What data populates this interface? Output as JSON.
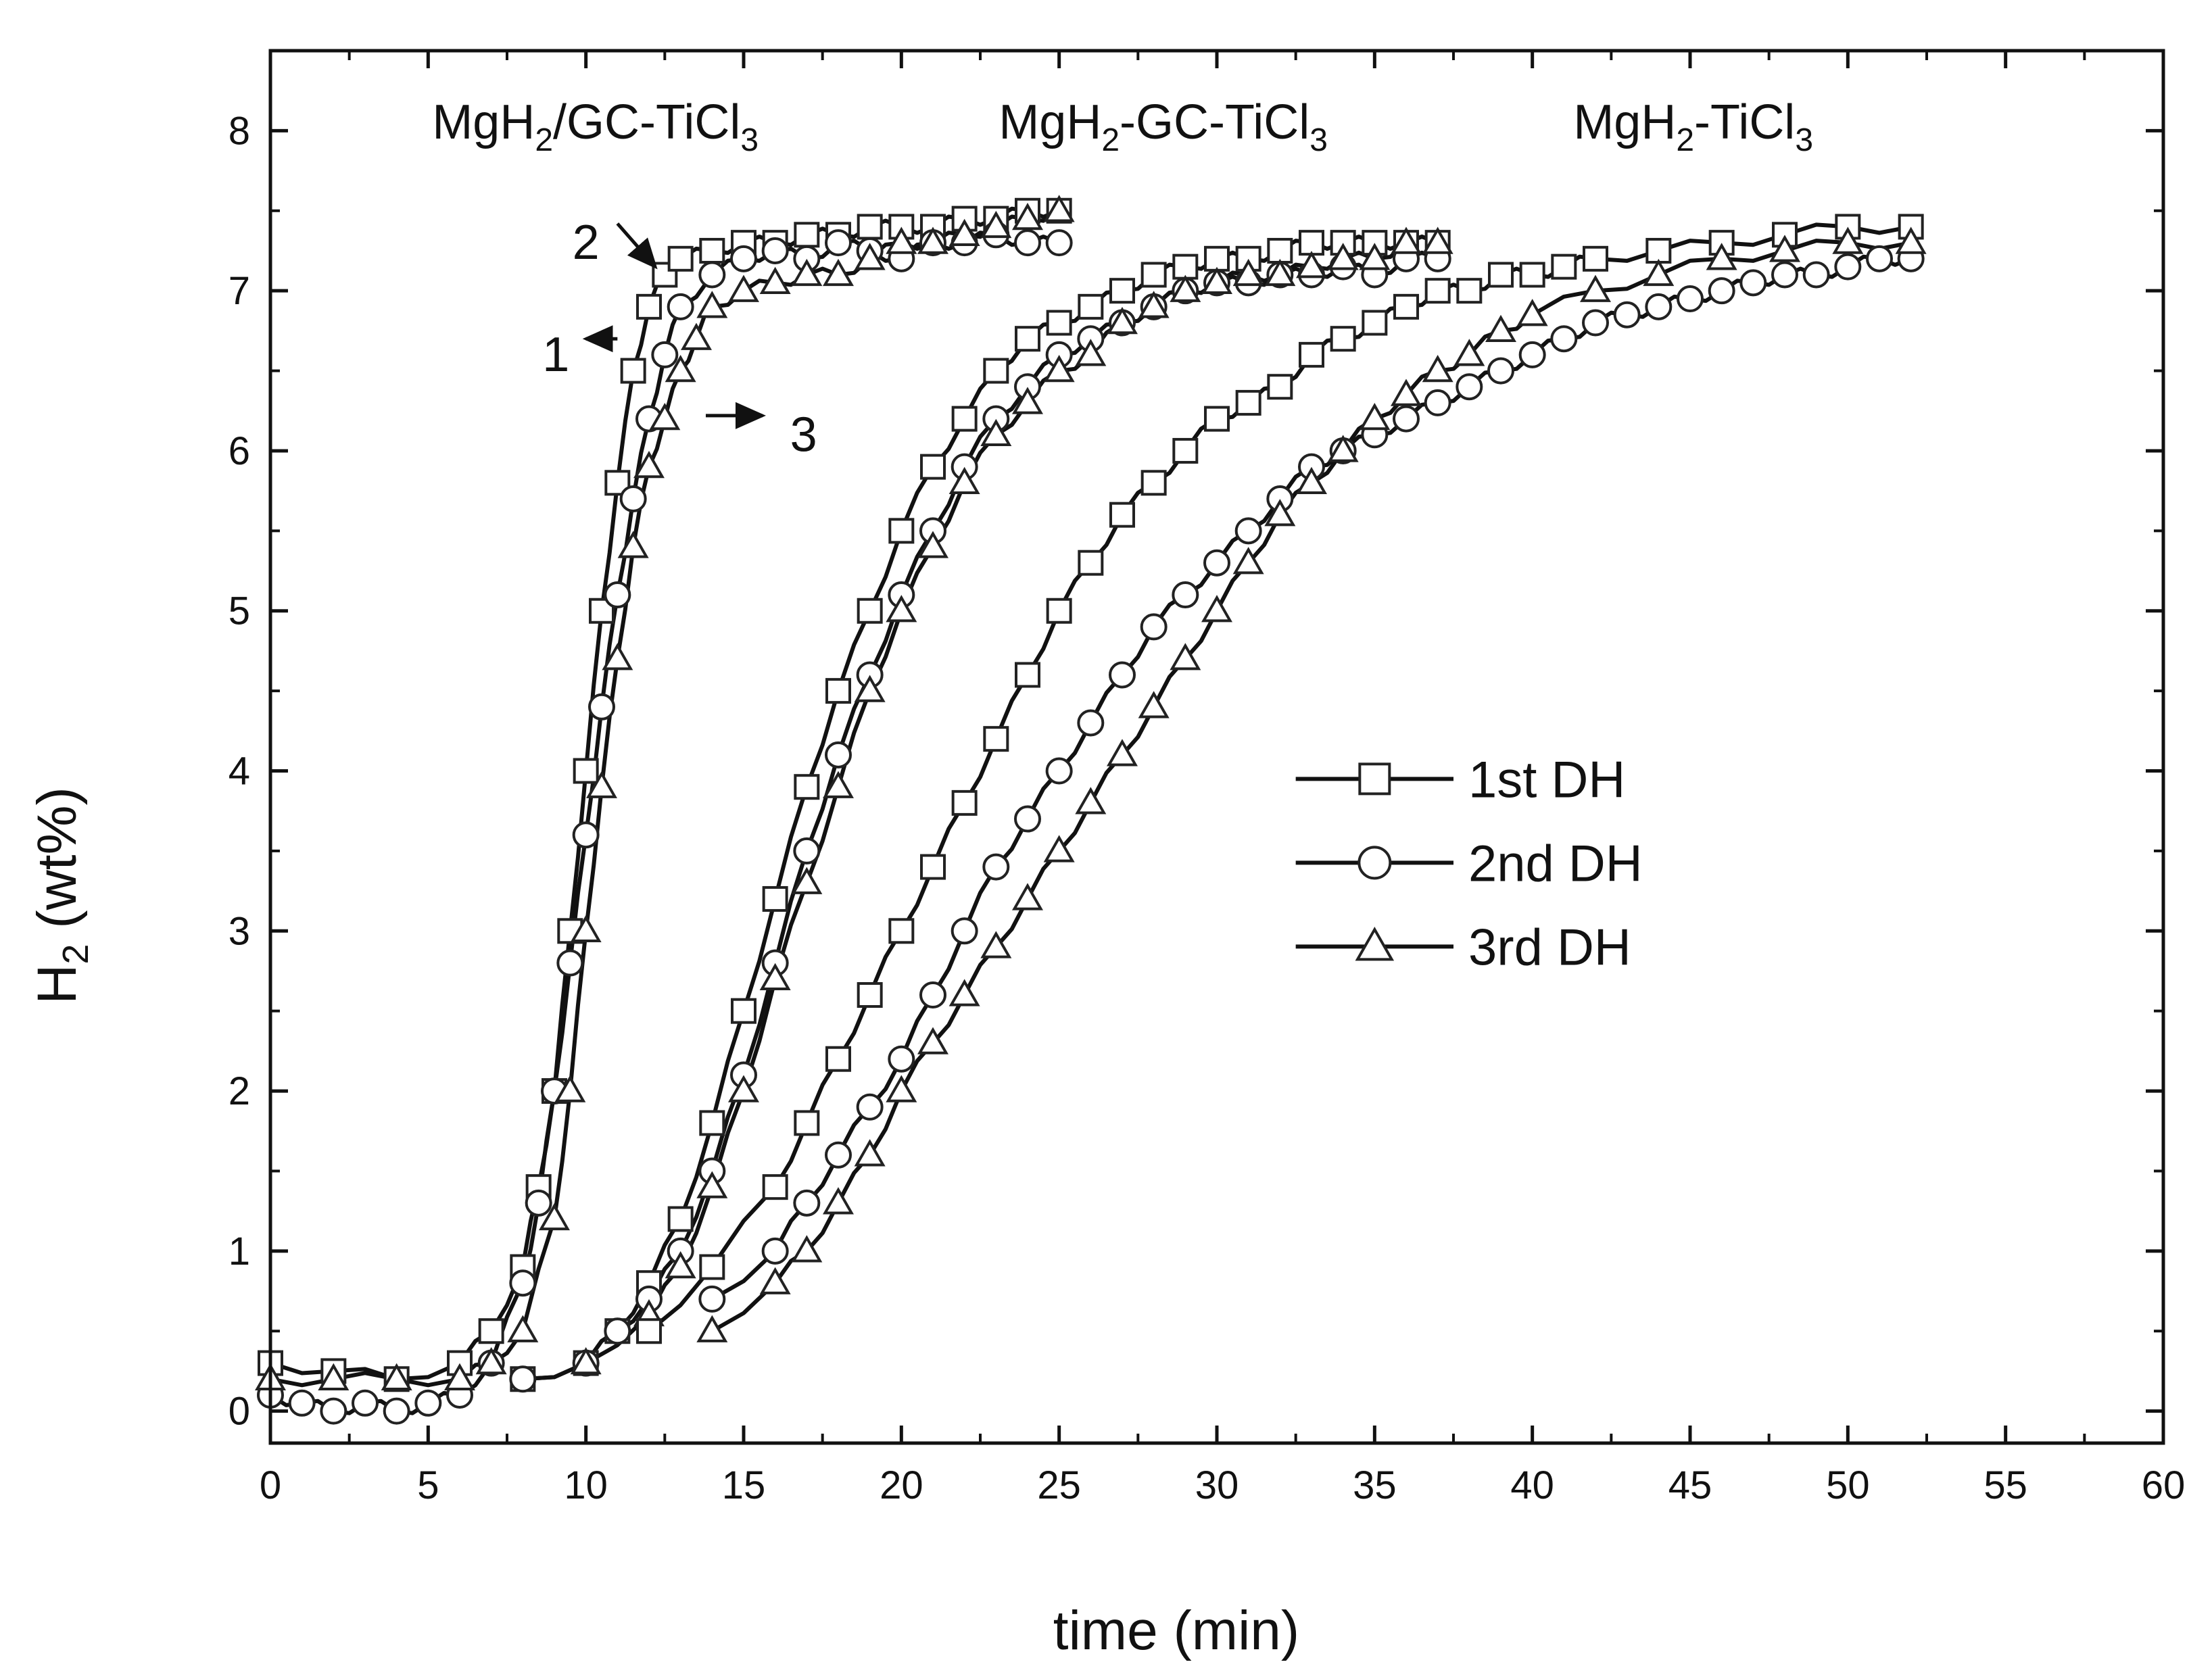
{
  "chart_data": {
    "type": "scatter",
    "title": "",
    "xlabel": "time (min)",
    "ylabel_main": "H",
    "ylabel_sub": "2",
    "ylabel_rest": " (wt%)",
    "xlim": [
      0,
      60
    ],
    "ylim": [
      -0.2,
      8.5
    ],
    "xticks": [
      "0",
      "5",
      "10",
      "15",
      "20",
      "25",
      "30",
      "35",
      "40",
      "45",
      "50",
      "55",
      "60"
    ],
    "yticks": [
      "0",
      "1",
      "2",
      "3",
      "4",
      "5",
      "6",
      "7",
      "8"
    ],
    "grid": false,
    "legend": {
      "position": "center-right",
      "entries": [
        {
          "label": "1st DH",
          "marker": "square"
        },
        {
          "label": "2nd DH",
          "marker": "circle"
        },
        {
          "label": "3rd DH",
          "marker": "triangle"
        }
      ]
    },
    "group_labels": [
      {
        "text": "MgH",
        "sub": "2",
        "rest": "/GC-TiCl",
        "sub2": "3",
        "x": 10.3,
        "y": 7.95
      },
      {
        "text": "MgH",
        "sub": "2",
        "rest": "-GC-TiCl",
        "sub2": "3",
        "x": 28.3,
        "y": 7.95
      },
      {
        "text": "MgH",
        "sub": "2",
        "rest": "-TiCl",
        "sub2": "3",
        "x": 45.1,
        "y": 7.95
      }
    ],
    "annotations": [
      {
        "text": "1",
        "x": 9.05,
        "y": 6.6
      },
      {
        "text": "2",
        "x": 10.0,
        "y": 7.3
      },
      {
        "text": "3",
        "x": 16.9,
        "y": 6.1
      }
    ],
    "series": [
      {
        "name": "MgH2/GC-TiCl3 1st DH",
        "group": "MgH2/GC-TiCl3",
        "marker": "square",
        "x": [
          0,
          2,
          4,
          6,
          7,
          8,
          8.5,
          9,
          9.5,
          10,
          10.5,
          11,
          11.5,
          12,
          12.5,
          13,
          14,
          15,
          16,
          17,
          18,
          19,
          20,
          21,
          22,
          23,
          24,
          25
        ],
        "y": [
          0.3,
          0.25,
          0.2,
          0.3,
          0.5,
          0.9,
          1.4,
          2.0,
          3.0,
          4.0,
          5.0,
          5.8,
          6.5,
          6.9,
          7.1,
          7.2,
          7.25,
          7.3,
          7.3,
          7.35,
          7.35,
          7.4,
          7.4,
          7.4,
          7.45,
          7.45,
          7.5,
          7.5
        ]
      },
      {
        "name": "MgH2/GC-TiCl3 2nd DH",
        "group": "MgH2/GC-TiCl3",
        "marker": "circle",
        "x": [
          0,
          1,
          2,
          3,
          4,
          5,
          6,
          7,
          8,
          8.5,
          9,
          9.5,
          10,
          10.5,
          11,
          11.5,
          12,
          12.5,
          13,
          14,
          15,
          16,
          17,
          18,
          19,
          20,
          21,
          22,
          23,
          24,
          25
        ],
        "y": [
          0.1,
          0.05,
          0.0,
          0.05,
          0.0,
          0.05,
          0.1,
          0.3,
          0.8,
          1.3,
          2.0,
          2.8,
          3.6,
          4.4,
          5.1,
          5.7,
          6.2,
          6.6,
          6.9,
          7.1,
          7.2,
          7.25,
          7.2,
          7.3,
          7.25,
          7.2,
          7.3,
          7.3,
          7.35,
          7.3,
          7.3
        ]
      },
      {
        "name": "MgH2/GC-TiCl3 3rd DH",
        "group": "MgH2/GC-TiCl3",
        "marker": "triangle",
        "x": [
          0,
          2,
          4,
          6,
          7,
          8,
          9,
          9.5,
          10,
          10.5,
          11,
          11.5,
          12,
          12.5,
          13,
          13.5,
          14,
          15,
          16,
          17,
          18,
          19,
          20,
          21,
          22,
          23,
          24,
          25
        ],
        "y": [
          0.2,
          0.2,
          0.2,
          0.2,
          0.3,
          0.5,
          1.2,
          2.0,
          3.0,
          3.9,
          4.7,
          5.4,
          5.9,
          6.2,
          6.5,
          6.7,
          6.9,
          7.0,
          7.05,
          7.1,
          7.1,
          7.2,
          7.3,
          7.3,
          7.35,
          7.4,
          7.45,
          7.5
        ]
      },
      {
        "name": "MgH2-GC-TiCl3 1st DH",
        "group": "MgH2-GC-TiCl3",
        "marker": "square",
        "x": [
          8,
          10,
          11,
          12,
          13,
          14,
          15,
          16,
          17,
          18,
          19,
          20,
          21,
          22,
          23,
          24,
          25,
          26,
          27,
          28,
          29,
          30,
          31,
          32,
          33,
          34,
          35,
          36,
          37
        ],
        "y": [
          0.2,
          0.3,
          0.5,
          0.8,
          1.2,
          1.8,
          2.5,
          3.2,
          3.9,
          4.5,
          5.0,
          5.5,
          5.9,
          6.2,
          6.5,
          6.7,
          6.8,
          6.9,
          7.0,
          7.1,
          7.15,
          7.2,
          7.2,
          7.25,
          7.3,
          7.3,
          7.3,
          7.3,
          7.3
        ]
      },
      {
        "name": "MgH2-GC-TiCl3 2nd DH",
        "group": "MgH2-GC-TiCl3",
        "marker": "circle",
        "x": [
          8,
          10,
          11,
          12,
          13,
          14,
          15,
          16,
          17,
          18,
          19,
          20,
          21,
          22,
          23,
          24,
          25,
          26,
          27,
          28,
          29,
          30,
          31,
          32,
          33,
          34,
          35,
          36,
          37
        ],
        "y": [
          0.2,
          0.3,
          0.5,
          0.7,
          1.0,
          1.5,
          2.1,
          2.8,
          3.5,
          4.1,
          4.6,
          5.1,
          5.5,
          5.9,
          6.2,
          6.4,
          6.6,
          6.7,
          6.8,
          6.9,
          7.0,
          7.05,
          7.05,
          7.1,
          7.1,
          7.15,
          7.1,
          7.2,
          7.2
        ]
      },
      {
        "name": "MgH2-GC-TiCl3 3rd DH",
        "group": "MgH2-GC-TiCl3",
        "marker": "triangle",
        "x": [
          10,
          12,
          13,
          14,
          15,
          16,
          17,
          18,
          19,
          20,
          21,
          22,
          23,
          24,
          25,
          26,
          27,
          28,
          29,
          30,
          31,
          32,
          33,
          34,
          35,
          36,
          37
        ],
        "y": [
          0.3,
          0.6,
          0.9,
          1.4,
          2.0,
          2.7,
          3.3,
          3.9,
          4.5,
          5.0,
          5.4,
          5.8,
          6.1,
          6.3,
          6.5,
          6.6,
          6.8,
          6.9,
          7.0,
          7.05,
          7.1,
          7.1,
          7.15,
          7.2,
          7.2,
          7.3,
          7.3
        ]
      },
      {
        "name": "MgH2-TiCl3 1st DH",
        "group": "MgH2-TiCl3",
        "marker": "square",
        "x": [
          12,
          14,
          16,
          17,
          18,
          19,
          20,
          21,
          22,
          23,
          24,
          25,
          26,
          27,
          28,
          29,
          30,
          31,
          32,
          33,
          34,
          35,
          36,
          37,
          38,
          39,
          40,
          41,
          42,
          44,
          46,
          48,
          50,
          52
        ],
        "y": [
          0.5,
          0.9,
          1.4,
          1.8,
          2.2,
          2.6,
          3.0,
          3.4,
          3.8,
          4.2,
          4.6,
          5.0,
          5.3,
          5.6,
          5.8,
          6.0,
          6.2,
          6.3,
          6.4,
          6.6,
          6.7,
          6.8,
          6.9,
          7.0,
          7.0,
          7.1,
          7.1,
          7.15,
          7.2,
          7.25,
          7.3,
          7.35,
          7.4,
          7.4
        ]
      },
      {
        "name": "MgH2-TiCl3 2nd DH",
        "group": "MgH2-TiCl3",
        "marker": "circle",
        "x": [
          14,
          16,
          17,
          18,
          19,
          20,
          21,
          22,
          23,
          24,
          25,
          26,
          27,
          28,
          29,
          30,
          31,
          32,
          33,
          34,
          35,
          36,
          37,
          38,
          39,
          40,
          41,
          42,
          43,
          44,
          45,
          46,
          47,
          48,
          49,
          50,
          51,
          52
        ],
        "y": [
          0.7,
          1.0,
          1.3,
          1.6,
          1.9,
          2.2,
          2.6,
          3.0,
          3.4,
          3.7,
          4.0,
          4.3,
          4.6,
          4.9,
          5.1,
          5.3,
          5.5,
          5.7,
          5.9,
          6.0,
          6.1,
          6.2,
          6.3,
          6.4,
          6.5,
          6.6,
          6.7,
          6.8,
          6.85,
          6.9,
          6.95,
          7.0,
          7.05,
          7.1,
          7.1,
          7.15,
          7.2,
          7.2
        ]
      },
      {
        "name": "MgH2-TiCl3 3rd DH",
        "group": "MgH2-TiCl3",
        "marker": "triangle",
        "x": [
          14,
          16,
          17,
          18,
          19,
          20,
          21,
          22,
          23,
          24,
          25,
          26,
          27,
          28,
          29,
          30,
          31,
          32,
          33,
          34,
          35,
          36,
          37,
          38,
          39,
          40,
          42,
          44,
          46,
          48,
          50,
          52
        ],
        "y": [
          0.5,
          0.8,
          1.0,
          1.3,
          1.6,
          2.0,
          2.3,
          2.6,
          2.9,
          3.2,
          3.5,
          3.8,
          4.1,
          4.4,
          4.7,
          5.0,
          5.3,
          5.6,
          5.8,
          6.0,
          6.2,
          6.35,
          6.5,
          6.6,
          6.75,
          6.85,
          7.0,
          7.1,
          7.2,
          7.25,
          7.3,
          7.3
        ]
      }
    ]
  }
}
